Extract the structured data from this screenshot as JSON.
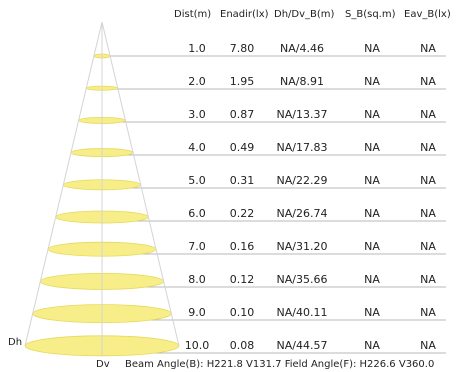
{
  "headers": {
    "dist": "Dist(m)",
    "enadir": "Enadir(lx)",
    "dhdv": "Dh/Dv_B(m)",
    "sb": "S_B(sq.m)",
    "eav": "Eav_B(lx)"
  },
  "rows": [
    {
      "dist": "1.0",
      "enadir": "7.80",
      "dhdv": "NA/4.46",
      "sb": "NA",
      "eav": "NA"
    },
    {
      "dist": "2.0",
      "enadir": "1.95",
      "dhdv": "NA/8.91",
      "sb": "NA",
      "eav": "NA"
    },
    {
      "dist": "3.0",
      "enadir": "0.87",
      "dhdv": "NA/13.37",
      "sb": "NA",
      "eav": "NA"
    },
    {
      "dist": "4.0",
      "enadir": "0.49",
      "dhdv": "NA/17.83",
      "sb": "NA",
      "eav": "NA"
    },
    {
      "dist": "5.0",
      "enadir": "0.31",
      "dhdv": "NA/22.29",
      "sb": "NA",
      "eav": "NA"
    },
    {
      "dist": "6.0",
      "enadir": "0.22",
      "dhdv": "NA/26.74",
      "sb": "NA",
      "eav": "NA"
    },
    {
      "dist": "7.0",
      "enadir": "0.16",
      "dhdv": "NA/31.20",
      "sb": "NA",
      "eav": "NA"
    },
    {
      "dist": "8.0",
      "enadir": "0.12",
      "dhdv": "NA/35.66",
      "sb": "NA",
      "eav": "NA"
    },
    {
      "dist": "9.0",
      "enadir": "0.10",
      "dhdv": "NA/40.11",
      "sb": "NA",
      "eav": "NA"
    },
    {
      "dist": "10.0",
      "enadir": "0.08",
      "dhdv": "NA/44.57",
      "sb": "NA",
      "eav": "NA"
    }
  ],
  "labels": {
    "dh": "Dh",
    "dv": "Dv"
  },
  "footer": "Beam Angle(B): H221.8 V131.7  Field Angle(F): H226.6 V360.0",
  "colors": {
    "ellipse_fill": "#f7ee8a",
    "ellipse_stroke": "#e6d95a",
    "cone_line": "#d4d4d4",
    "row_line": "#b8b8b8"
  }
}
